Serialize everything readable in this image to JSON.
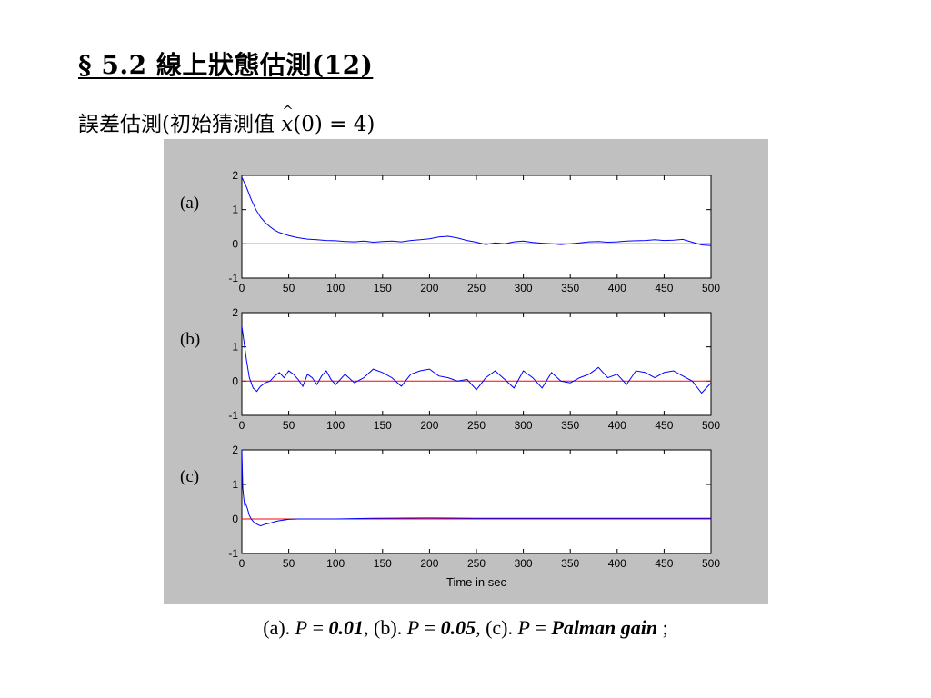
{
  "slide": {
    "title": "§ 5.2 線上狀態估測(12)",
    "subtitle_prefix": "誤差估測(初始猜測值 ",
    "subtitle_var": "x",
    "subtitle_suffix": "(0) = 4)",
    "caption": {
      "a_label": "(a). ",
      "a_var": "P",
      "a_eq": " = ",
      "a_val": "0.01",
      "sep1": ", (b). ",
      "b_var": "P",
      "b_eq": " = ",
      "b_val": "0.05",
      "sep2": ", (c). ",
      "c_var": "P",
      "c_eq": " = ",
      "c_val": "Palman gain",
      "end": " ;"
    }
  },
  "colors": {
    "figure_background": "#c0c0c0",
    "axes_background": "#ffffff",
    "estimate_line": "#0000ff",
    "zero_line": "#ff0000"
  },
  "chart_data": [
    {
      "type": "line",
      "panel_label": "(a)",
      "xlabel": "",
      "ylabel": "",
      "xlim": [
        0,
        500
      ],
      "ylim": [
        -1,
        2
      ],
      "xticks": [
        "0",
        "50",
        "100",
        "150",
        "200",
        "250",
        "300",
        "350",
        "400",
        "450",
        "500"
      ],
      "yticks": [
        "2",
        "1",
        "0",
        "-1"
      ],
      "grid": false,
      "series": [
        {
          "color": "#0000ff",
          "x": [
            0,
            5,
            10,
            15,
            20,
            25,
            30,
            35,
            40,
            50,
            60,
            70,
            80,
            90,
            100,
            110,
            120,
            130,
            140,
            150,
            160,
            170,
            180,
            190,
            200,
            210,
            220,
            230,
            240,
            250,
            260,
            270,
            280,
            290,
            300,
            310,
            320,
            330,
            340,
            350,
            360,
            370,
            380,
            390,
            400,
            410,
            420,
            430,
            440,
            450,
            460,
            470,
            480,
            490,
            500
          ],
          "y": [
            1.95,
            1.65,
            1.3,
            1.0,
            0.78,
            0.62,
            0.5,
            0.4,
            0.33,
            0.24,
            0.18,
            0.14,
            0.12,
            0.1,
            0.09,
            0.07,
            0.06,
            0.08,
            0.05,
            0.07,
            0.08,
            0.06,
            0.1,
            0.12,
            0.15,
            0.2,
            0.22,
            0.17,
            0.1,
            0.05,
            -0.02,
            0.03,
            0.0,
            0.06,
            0.08,
            0.04,
            0.02,
            0.0,
            -0.02,
            0.0,
            0.03,
            0.06,
            0.07,
            0.05,
            0.06,
            0.08,
            0.09,
            0.1,
            0.12,
            0.1,
            0.11,
            0.13,
            0.05,
            -0.03,
            -0.05
          ]
        },
        {
          "color": "#ff0000",
          "x": [
            0,
            500
          ],
          "y": [
            0,
            0
          ]
        }
      ]
    },
    {
      "type": "line",
      "panel_label": "(b)",
      "xlabel": "",
      "ylabel": "",
      "xlim": [
        0,
        500
      ],
      "ylim": [
        -1,
        2
      ],
      "xticks": [
        "0",
        "50",
        "100",
        "150",
        "200",
        "250",
        "300",
        "350",
        "400",
        "450",
        "500"
      ],
      "yticks": [
        "2",
        "1",
        "0",
        "-1"
      ],
      "grid": false,
      "series": [
        {
          "color": "#0000ff",
          "x": [
            0,
            2,
            5,
            8,
            12,
            16,
            20,
            25,
            30,
            35,
            40,
            45,
            50,
            55,
            60,
            65,
            70,
            75,
            80,
            85,
            90,
            95,
            100,
            110,
            120,
            130,
            140,
            150,
            160,
            170,
            180,
            190,
            200,
            210,
            220,
            230,
            240,
            250,
            260,
            270,
            280,
            290,
            300,
            310,
            320,
            330,
            340,
            350,
            360,
            370,
            380,
            390,
            400,
            410,
            420,
            430,
            440,
            450,
            460,
            470,
            480,
            490,
            500
          ],
          "y": [
            1.6,
            1.2,
            0.6,
            0.1,
            -0.2,
            -0.3,
            -0.15,
            -0.05,
            0.0,
            0.15,
            0.25,
            0.1,
            0.3,
            0.2,
            0.05,
            -0.15,
            0.2,
            0.1,
            -0.1,
            0.15,
            0.3,
            0.05,
            -0.1,
            0.2,
            -0.05,
            0.1,
            0.35,
            0.25,
            0.1,
            -0.15,
            0.2,
            0.3,
            0.35,
            0.15,
            0.1,
            0.0,
            0.05,
            -0.25,
            0.1,
            0.3,
            0.05,
            -0.2,
            0.3,
            0.1,
            -0.2,
            0.25,
            0.0,
            -0.05,
            0.1,
            0.2,
            0.4,
            0.1,
            0.2,
            -0.1,
            0.3,
            0.25,
            0.1,
            0.25,
            0.3,
            0.15,
            0.0,
            -0.35,
            -0.05
          ]
        },
        {
          "color": "#ff0000",
          "x": [
            0,
            500
          ],
          "y": [
            0,
            0
          ]
        }
      ]
    },
    {
      "type": "line",
      "panel_label": "(c)",
      "xlabel": "Time in sec",
      "ylabel": "",
      "xlim": [
        0,
        500
      ],
      "ylim": [
        -1,
        2
      ],
      "xticks": [
        "0",
        "50",
        "100",
        "150",
        "200",
        "250",
        "300",
        "350",
        "400",
        "450",
        "500"
      ],
      "yticks": [
        "2",
        "1",
        "0",
        "-1"
      ],
      "grid": false,
      "series": [
        {
          "color": "#0000ff",
          "x": [
            0,
            1,
            2,
            3,
            4,
            6,
            8,
            10,
            13,
            16,
            20,
            25,
            30,
            35,
            40,
            45,
            50,
            60,
            70,
            80,
            90,
            100,
            140,
            200,
            250,
            300,
            350,
            400,
            450,
            500
          ],
          "y": [
            2.0,
            0.9,
            0.6,
            0.4,
            0.45,
            0.3,
            0.1,
            0.0,
            -0.1,
            -0.15,
            -0.2,
            -0.15,
            -0.12,
            -0.08,
            -0.05,
            -0.03,
            -0.01,
            0.0,
            0.0,
            0.0,
            0.0,
            0.0,
            0.02,
            0.03,
            0.02,
            0.02,
            0.02,
            0.02,
            0.02,
            0.02
          ]
        },
        {
          "color": "#ff0000",
          "x": [
            0,
            500
          ],
          "y": [
            0,
            0
          ]
        }
      ]
    }
  ]
}
